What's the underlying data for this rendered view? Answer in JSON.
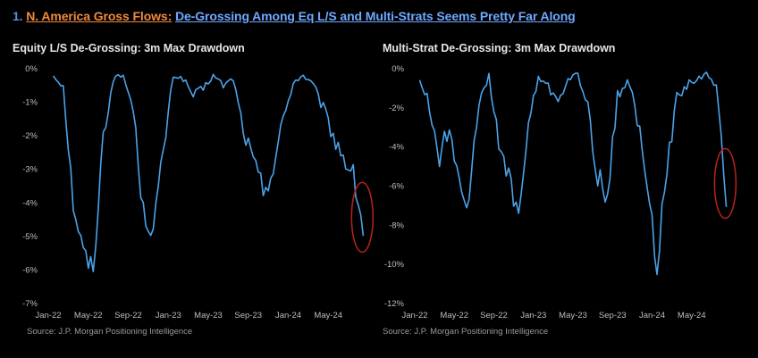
{
  "header": {
    "number": "1.",
    "lead": "N. America Gross Flows:",
    "rest": "De-Grossing Among Eq L/S and Multi-Strats Seems Pretty Far Along"
  },
  "colors": {
    "line": "#4aa3ea",
    "circle": "#b8231f",
    "lead": "#f08a3c",
    "rest": "#6fa8ff"
  },
  "chart_data": [
    {
      "type": "line",
      "title": "Equity L/S De-Grossing: 3m Max Drawdown",
      "source": "Source: J.P. Morgan Positioning Intelligence",
      "xticks": [
        "Jan-22",
        "May-22",
        "Sep-22",
        "Jan-23",
        "May-23",
        "Sep-23",
        "Jan-24",
        "May-24"
      ],
      "yticks": [
        "0%",
        "-1%",
        "-2%",
        "-3%",
        "-4%",
        "-5%",
        "-6%",
        "-7%"
      ],
      "ylim": [
        -7,
        0
      ],
      "xlim": [
        "2022-01-01",
        "2024-08-31"
      ],
      "highlight": "circle around latest readings (Jul/Aug 2024)",
      "series": [
        {
          "x": [
            "2022-01",
            "2022-02",
            "2022-03",
            "2022-04",
            "2022-05",
            "2022-06",
            "2022-07",
            "2022-08",
            "2022-09",
            "2022-10",
            "2022-11",
            "2022-12",
            "2023-01",
            "2023-02",
            "2023-03",
            "2023-04",
            "2023-05",
            "2023-06",
            "2023-07",
            "2023-08",
            "2023-09",
            "2023-10",
            "2023-11",
            "2023-12",
            "2024-01",
            "2024-02",
            "2024-03",
            "2024-04",
            "2024-05",
            "2024-06",
            "2024-07",
            "2024-08"
          ],
          "y": [
            -0.2,
            -0.5,
            -4.0,
            -5.5,
            -6.0,
            -2.0,
            -0.3,
            -0.2,
            -1.2,
            -4.3,
            -4.8,
            -2.5,
            -0.2,
            -0.3,
            -0.8,
            -0.6,
            -0.2,
            -0.5,
            -0.3,
            -1.8,
            -2.8,
            -3.6,
            -3.0,
            -1.5,
            -0.4,
            -0.2,
            -0.5,
            -1.2,
            -2.0,
            -2.6,
            -3.2,
            -4.8
          ]
        }
      ]
    },
    {
      "type": "line",
      "title": "Multi-Strat De-Grossing: 3m Max Drawdown",
      "source": "Source: J.P. Morgan Positioning Intelligence",
      "xticks": [
        "Jan-22",
        "May-22",
        "Sep-22",
        "Jan-23",
        "May-23",
        "Sep-23",
        "Jan-24",
        "May-24"
      ],
      "yticks": [
        "0%",
        "-2%",
        "-4%",
        "-6%",
        "-8%",
        "-10%",
        "-12%"
      ],
      "ylim": [
        -12,
        0
      ],
      "xlim": [
        "2022-01-01",
        "2024-08-31"
      ],
      "highlight": "circle around latest readings (Jul/Aug 2024)",
      "series": [
        {
          "x": [
            "2022-01",
            "2022-02",
            "2022-03",
            "2022-04",
            "2022-05",
            "2022-06",
            "2022-07",
            "2022-08",
            "2022-09",
            "2022-10",
            "2022-11",
            "2022-12",
            "2023-01",
            "2023-02",
            "2023-03",
            "2023-04",
            "2023-05",
            "2023-06",
            "2023-07",
            "2023-08",
            "2023-09",
            "2023-10",
            "2023-11",
            "2023-12",
            "2024-01",
            "2024-02",
            "2024-03",
            "2024-04",
            "2024-05",
            "2024-06",
            "2024-07",
            "2024-08"
          ],
          "y": [
            -0.5,
            -2.0,
            -4.5,
            -3.0,
            -5.5,
            -7.0,
            -1.5,
            -0.4,
            -4.0,
            -5.5,
            -7.5,
            -3.0,
            -0.4,
            -1.0,
            -1.5,
            -0.6,
            -0.3,
            -2.0,
            -5.5,
            -6.5,
            -1.5,
            -0.5,
            -2.5,
            -6.0,
            -10.0,
            -5.0,
            -1.5,
            -0.8,
            -0.5,
            -0.3,
            -1.0,
            -6.5
          ]
        }
      ]
    }
  ]
}
